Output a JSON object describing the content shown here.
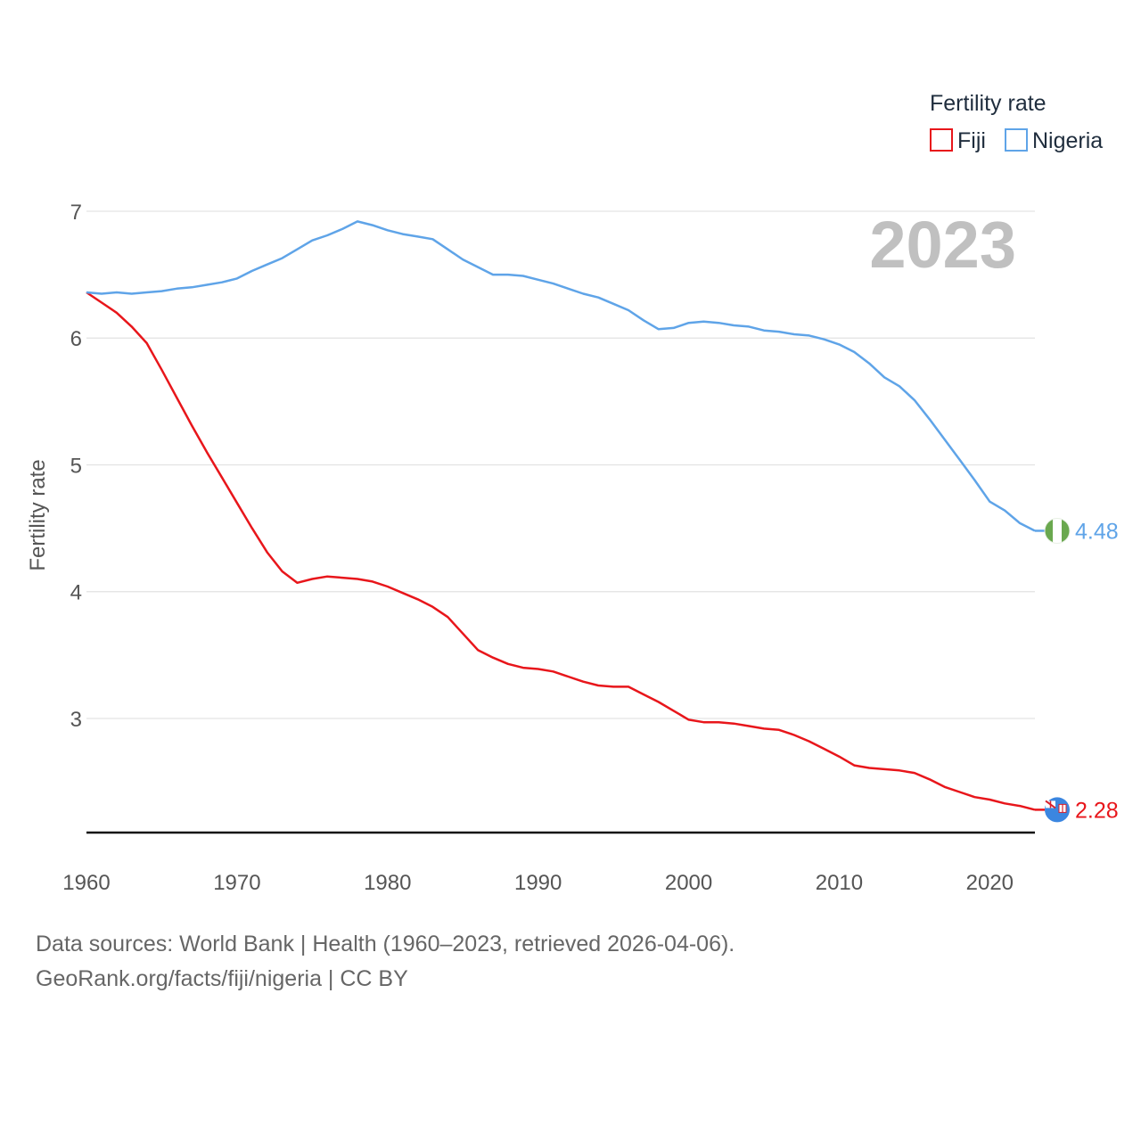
{
  "legend": {
    "title": "Fertility rate"
  },
  "year_label": "2023",
  "footer": {
    "line1": "Data sources: World Bank | Health (1960–2023, retrieved 2026-04-06).",
    "line2": "GeoRank.org/facts/fiji/nigeria | CC BY"
  },
  "chart_data": {
    "type": "line",
    "title": "",
    "xlabel": "",
    "ylabel": "Fertility rate",
    "xlim": [
      1960,
      2023
    ],
    "ylim": [
      2.1,
      7
    ],
    "x_ticks": [
      1960,
      1970,
      1980,
      1990,
      2000,
      2010,
      2020
    ],
    "y_ticks": [
      3,
      4,
      5,
      6,
      7
    ],
    "x": [
      1960,
      1961,
      1962,
      1963,
      1964,
      1965,
      1966,
      1967,
      1968,
      1969,
      1970,
      1971,
      1972,
      1973,
      1974,
      1975,
      1976,
      1977,
      1978,
      1979,
      1980,
      1981,
      1982,
      1983,
      1984,
      1985,
      1986,
      1987,
      1988,
      1989,
      1990,
      1991,
      1992,
      1993,
      1994,
      1995,
      1996,
      1997,
      1998,
      1999,
      2000,
      2001,
      2002,
      2003,
      2004,
      2005,
      2006,
      2007,
      2008,
      2009,
      2010,
      2011,
      2012,
      2013,
      2014,
      2015,
      2016,
      2017,
      2018,
      2019,
      2020,
      2021,
      2022,
      2023
    ],
    "series": [
      {
        "name": "Fiji",
        "color": "#e8161b",
        "end_label": "2.28",
        "values": [
          6.36,
          6.28,
          6.2,
          6.09,
          5.96,
          5.75,
          5.53,
          5.31,
          5.1,
          4.9,
          4.7,
          4.5,
          4.31,
          4.16,
          4.07,
          4.1,
          4.12,
          4.11,
          4.1,
          4.08,
          4.04,
          3.99,
          3.94,
          3.88,
          3.8,
          3.67,
          3.54,
          3.48,
          3.43,
          3.4,
          3.39,
          3.37,
          3.33,
          3.29,
          3.26,
          3.25,
          3.25,
          3.19,
          3.13,
          3.06,
          2.99,
          2.97,
          2.97,
          2.96,
          2.94,
          2.92,
          2.91,
          2.87,
          2.82,
          2.76,
          2.7,
          2.63,
          2.61,
          2.6,
          2.59,
          2.57,
          2.52,
          2.46,
          2.42,
          2.38,
          2.36,
          2.33,
          2.31,
          2.28
        ]
      },
      {
        "name": "Nigeria",
        "color": "#5fa4e8",
        "end_label": "4.48",
        "values": [
          6.36,
          6.35,
          6.36,
          6.35,
          6.36,
          6.37,
          6.39,
          6.4,
          6.42,
          6.44,
          6.47,
          6.53,
          6.58,
          6.63,
          6.7,
          6.77,
          6.81,
          6.86,
          6.92,
          6.89,
          6.85,
          6.82,
          6.8,
          6.78,
          6.7,
          6.62,
          6.56,
          6.5,
          6.5,
          6.49,
          6.46,
          6.43,
          6.39,
          6.35,
          6.32,
          6.27,
          6.22,
          6.14,
          6.07,
          6.08,
          6.12,
          6.13,
          6.12,
          6.1,
          6.09,
          6.06,
          6.05,
          6.03,
          6.02,
          5.99,
          5.95,
          5.89,
          5.8,
          5.69,
          5.62,
          5.51,
          5.36,
          5.2,
          5.04,
          4.88,
          4.71,
          4.64,
          4.54,
          4.48
        ]
      }
    ]
  }
}
